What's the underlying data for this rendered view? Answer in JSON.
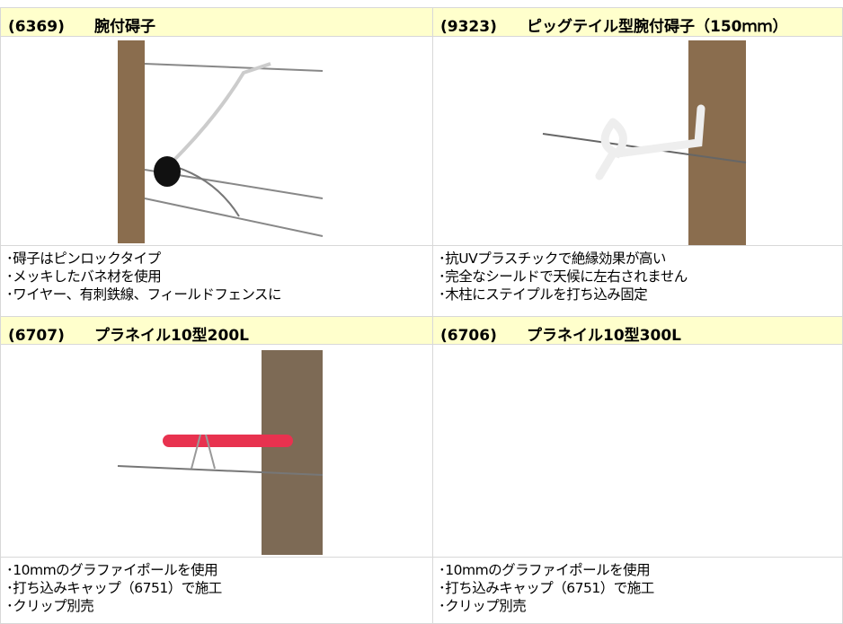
{
  "products": [
    {
      "code": "(6369)",
      "name": "腕付碍子",
      "features": [
        "･碍子はピンロックタイプ",
        "･メッキしたバネ材を使用",
        "･ワイヤー、有刺鉄線、フィールドフェンスに"
      ]
    },
    {
      "code": "(9323)",
      "name": "ピッグテイル型腕付碍子（150ｍｍ）",
      "features": [
        "･抗UVプラスチックで絶縁効果が高い",
        "･完全なシールドで天候に左右されません",
        "･木柱にステイプルを打ち込み固定"
      ]
    },
    {
      "code": "(6707)",
      "name": "プラネイル10型200L",
      "features": [
        "･10mmのグラファイポールを使用",
        "･打ち込みキャップ（6751）で施工",
        "･クリップ別売"
      ]
    },
    {
      "code": "(6706)",
      "name": "プラネイル10型300L",
      "features": [
        "･10mmのグラファイポールを使用",
        "･打ち込みキャップ（6751）で施工",
        "･クリップ別売"
      ]
    }
  ]
}
